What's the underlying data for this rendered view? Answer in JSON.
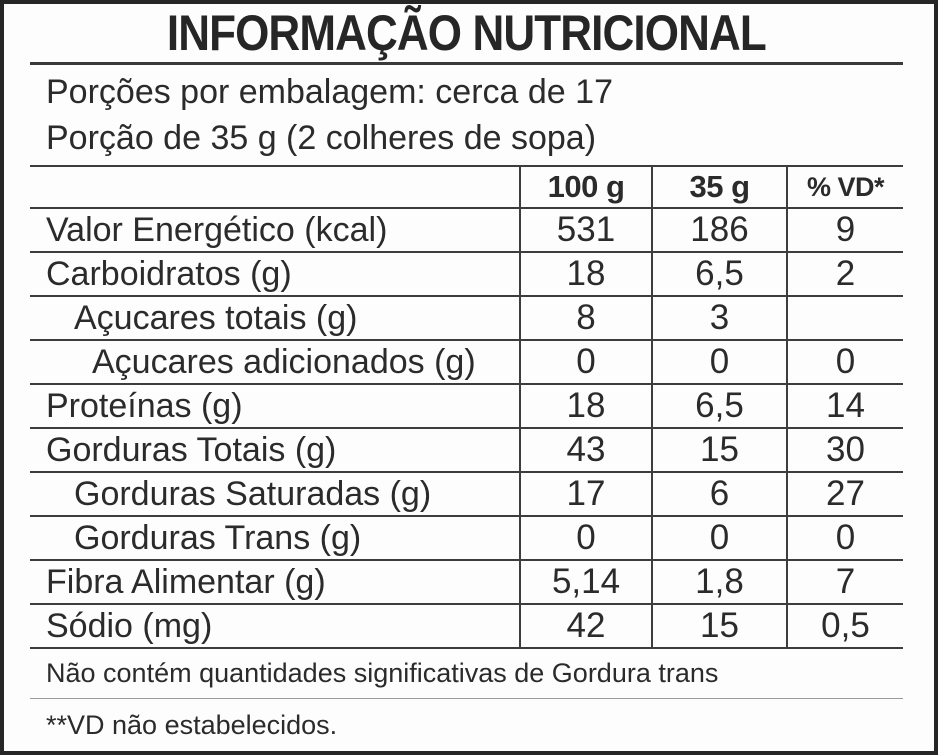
{
  "title": "INFORMAÇÃO NUTRICIONAL",
  "serving": {
    "line1": "Porções por embalagem: cerca de 17",
    "line2": "Porção de 35 g (2 colheres de sopa)"
  },
  "table": {
    "columns": [
      "100 g",
      "35 g",
      "% VD*"
    ],
    "rows": [
      {
        "label": "Valor Energético (kcal)",
        "per100g": "531",
        "per35g": "186",
        "vd": "9",
        "indent": 0
      },
      {
        "label": "Carboidratos (g)",
        "per100g": "18",
        "per35g": "6,5",
        "vd": "2",
        "indent": 0
      },
      {
        "label": "Açucares totais (g)",
        "per100g": "8",
        "per35g": "3",
        "vd": "",
        "indent": 1
      },
      {
        "label": "Açucares adicionados (g)",
        "per100g": "0",
        "per35g": "0",
        "vd": "0",
        "indent": 2
      },
      {
        "label": "Proteínas (g)",
        "per100g": "18",
        "per35g": "6,5",
        "vd": "14",
        "indent": 0
      },
      {
        "label": "Gorduras Totais (g)",
        "per100g": "43",
        "per35g": "15",
        "vd": "30",
        "indent": 0
      },
      {
        "label": "Gorduras Saturadas (g)",
        "per100g": "17",
        "per35g": "6",
        "vd": "27",
        "indent": 1
      },
      {
        "label": "Gorduras Trans (g)",
        "per100g": "0",
        "per35g": "0",
        "vd": "0",
        "indent": 1
      },
      {
        "label": "Fibra Alimentar (g)",
        "per100g": "5,14",
        "per35g": "1,8",
        "vd": "7",
        "indent": 0
      },
      {
        "label": "Sódio (mg)",
        "per100g": "42",
        "per35g": "15",
        "vd": "0,5",
        "indent": 0
      }
    ]
  },
  "footnotes": {
    "line1": "Não contém quantidades significativas de Gordura trans",
    "line2": "**VD não estabelecidos."
  }
}
